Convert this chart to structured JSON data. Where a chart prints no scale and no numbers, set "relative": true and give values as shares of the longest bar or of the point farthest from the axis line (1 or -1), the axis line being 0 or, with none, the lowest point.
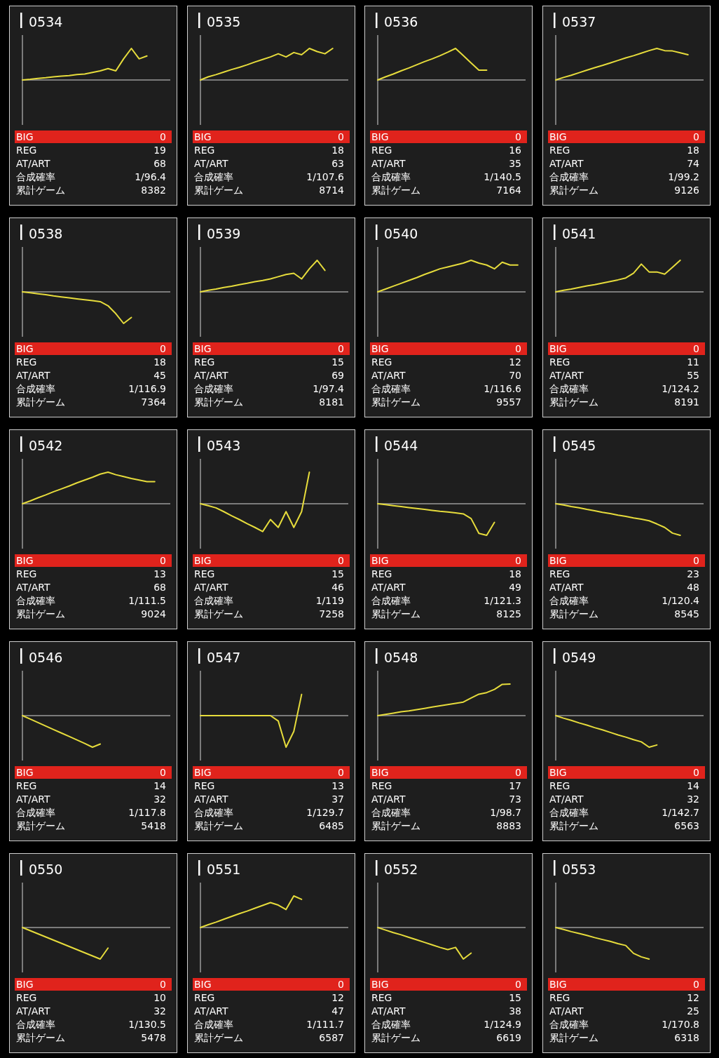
{
  "chart_data": [
    {
      "type": "line",
      "title": "0534",
      "relative": true,
      "color": "#e6dc3c",
      "categories": [
        null,
        null,
        null,
        null,
        null,
        null,
        null,
        null,
        null,
        null,
        null,
        null,
        null,
        null,
        null,
        null,
        null,
        null,
        null,
        null
      ],
      "values": [
        0,
        0.02,
        0.05,
        0.07,
        0.1,
        0.12,
        0.14,
        0.17,
        0.19,
        0.24,
        0.29,
        0.36,
        0.29,
        0.67,
        1,
        0.67,
        0.76,
        null,
        null,
        null
      ],
      "annotations": [
        "BIG",
        "0",
        "REG",
        "19",
        "AT/ART",
        "68",
        "合成確率",
        "1/96.4",
        "累計ゲーム",
        "8382"
      ]
    },
    {
      "type": "line",
      "title": "0535",
      "relative": true,
      "color": "#e6dc3c",
      "categories": [
        null,
        null,
        null,
        null,
        null,
        null,
        null,
        null,
        null,
        null,
        null,
        null,
        null,
        null,
        null,
        null,
        null,
        null,
        null,
        null
      ],
      "values": [
        0,
        0.1,
        0.17,
        0.25,
        0.33,
        0.4,
        0.48,
        0.57,
        0.65,
        0.73,
        0.83,
        0.73,
        0.87,
        0.8,
        1,
        0.9,
        0.83,
        1,
        null,
        null
      ],
      "annotations": [
        "BIG",
        "0",
        "REG",
        "18",
        "AT/ART",
        "63",
        "合成確率",
        "1/107.6",
        "累計ゲーム",
        "8714"
      ]
    },
    {
      "type": "line",
      "title": "0536",
      "relative": true,
      "color": "#e6dc3c",
      "categories": [
        null,
        null,
        null,
        null,
        null,
        null,
        null,
        null,
        null,
        null,
        null,
        null,
        null,
        null,
        null,
        null,
        null,
        null,
        null,
        null
      ],
      "values": [
        0,
        0.1,
        0.19,
        0.29,
        0.38,
        0.48,
        0.58,
        0.67,
        0.77,
        0.88,
        1,
        0.77,
        0.54,
        0.31,
        0.31,
        null,
        null,
        null,
        null,
        null
      ],
      "annotations": [
        "BIG",
        "0",
        "REG",
        "16",
        "AT/ART",
        "35",
        "合成確率",
        "1/140.5",
        "累計ゲーム",
        "7164"
      ]
    },
    {
      "type": "line",
      "title": "0537",
      "relative": true,
      "color": "#e6dc3c",
      "categories": [
        null,
        null,
        null,
        null,
        null,
        null,
        null,
        null,
        null,
        null,
        null,
        null,
        null,
        null,
        null,
        null,
        null,
        null,
        null,
        null
      ],
      "values": [
        0,
        0.08,
        0.15,
        0.23,
        0.31,
        0.39,
        0.46,
        0.54,
        0.62,
        0.7,
        0.77,
        0.85,
        0.93,
        1,
        0.93,
        0.92,
        0.86,
        0.8,
        null,
        null
      ],
      "annotations": [
        "BIG",
        "0",
        "REG",
        "18",
        "AT/ART",
        "74",
        "合成確率",
        "1/99.2",
        "累計ゲーム",
        "9126"
      ]
    },
    {
      "type": "line",
      "title": "0538",
      "relative": true,
      "color": "#e6dc3c",
      "categories": [
        null,
        null,
        null,
        null,
        null,
        null,
        null,
        null,
        null,
        null,
        null,
        null,
        null,
        null,
        null,
        null,
        null,
        null,
        null,
        null
      ],
      "values": [
        0,
        -0.03,
        -0.06,
        -0.09,
        -0.13,
        -0.16,
        -0.19,
        -0.22,
        -0.25,
        -0.28,
        -0.31,
        -0.44,
        -0.69,
        -1,
        -0.81,
        null,
        null,
        null,
        null,
        null
      ],
      "annotations": [
        "BIG",
        "0",
        "REG",
        "18",
        "AT/ART",
        "45",
        "合成確率",
        "1/116.9",
        "累計ゲーム",
        "7364"
      ]
    },
    {
      "type": "line",
      "title": "0539",
      "relative": true,
      "color": "#e6dc3c",
      "categories": [
        null,
        null,
        null,
        null,
        null,
        null,
        null,
        null,
        null,
        null,
        null,
        null,
        null,
        null,
        null,
        null,
        null,
        null,
        null,
        null
      ],
      "values": [
        0,
        0.05,
        0.09,
        0.14,
        0.18,
        0.23,
        0.27,
        0.32,
        0.36,
        0.41,
        0.48,
        0.55,
        0.59,
        0.41,
        0.73,
        1,
        0.68,
        null,
        null,
        null
      ],
      "annotations": [
        "BIG",
        "0",
        "REG",
        "15",
        "AT/ART",
        "69",
        "合成確率",
        "1/97.4",
        "累計ゲーム",
        "8181"
      ]
    },
    {
      "type": "line",
      "title": "0540",
      "relative": true,
      "color": "#e6dc3c",
      "categories": [
        null,
        null,
        null,
        null,
        null,
        null,
        null,
        null,
        null,
        null,
        null,
        null,
        null,
        null,
        null,
        null,
        null,
        null,
        null,
        null
      ],
      "values": [
        0,
        0.09,
        0.18,
        0.27,
        0.36,
        0.45,
        0.55,
        0.64,
        0.73,
        0.79,
        0.85,
        0.91,
        1,
        0.91,
        0.85,
        0.73,
        0.94,
        0.85,
        0.85,
        null
      ],
      "annotations": [
        "BIG",
        "0",
        "REG",
        "12",
        "AT/ART",
        "70",
        "合成確率",
        "1/116.6",
        "累計ゲーム",
        "9557"
      ]
    },
    {
      "type": "line",
      "title": "0541",
      "relative": true,
      "color": "#e6dc3c",
      "categories": [
        null,
        null,
        null,
        null,
        null,
        null,
        null,
        null,
        null,
        null,
        null,
        null,
        null,
        null,
        null,
        null,
        null,
        null,
        null,
        null
      ],
      "values": [
        0,
        0.05,
        0.09,
        0.14,
        0.19,
        0.23,
        0.28,
        0.33,
        0.38,
        0.44,
        0.59,
        0.88,
        0.63,
        0.63,
        0.56,
        0.78,
        1,
        null,
        null,
        null
      ],
      "annotations": [
        "BIG",
        "0",
        "REG",
        "11",
        "AT/ART",
        "55",
        "合成確率",
        "1/124.2",
        "累計ゲーム",
        "8191"
      ]
    },
    {
      "type": "line",
      "title": "0542",
      "relative": true,
      "color": "#e6dc3c",
      "categories": [
        null,
        null,
        null,
        null,
        null,
        null,
        null,
        null,
        null,
        null,
        null,
        null,
        null,
        null,
        null,
        null,
        null,
        null,
        null,
        null
      ],
      "values": [
        0,
        0.09,
        0.19,
        0.28,
        0.38,
        0.47,
        0.56,
        0.66,
        0.75,
        0.84,
        0.94,
        1,
        0.92,
        0.86,
        0.8,
        0.75,
        0.7,
        0.7,
        null,
        null
      ],
      "annotations": [
        "BIG",
        "0",
        "REG",
        "13",
        "AT/ART",
        "68",
        "合成確率",
        "1/111.5",
        "累計ゲーム",
        "9024"
      ]
    },
    {
      "type": "line",
      "title": "0543",
      "relative": true,
      "color": "#e6dc3c",
      "categories": [
        null,
        null,
        null,
        null,
        null,
        null,
        null,
        null,
        null,
        null,
        null,
        null,
        null,
        null,
        null,
        null,
        null,
        null,
        null,
        null
      ],
      "values": [
        0,
        -0.06,
        -0.13,
        -0.25,
        -0.38,
        -0.5,
        -0.63,
        -0.75,
        -0.88,
        -0.5,
        -0.75,
        -0.25,
        -0.75,
        -0.25,
        1,
        null,
        null,
        null,
        null,
        null
      ],
      "annotations": [
        "BIG",
        "0",
        "REG",
        "15",
        "AT/ART",
        "46",
        "合成確率",
        "1/119",
        "累計ゲーム",
        "7258"
      ]
    },
    {
      "type": "line",
      "title": "0544",
      "relative": true,
      "color": "#e6dc3c",
      "categories": [
        null,
        null,
        null,
        null,
        null,
        null,
        null,
        null,
        null,
        null,
        null,
        null,
        null,
        null,
        null,
        null,
        null,
        null,
        null,
        null
      ],
      "values": [
        0,
        -0.03,
        -0.06,
        -0.09,
        -0.12,
        -0.15,
        -0.18,
        -0.21,
        -0.24,
        -0.26,
        -0.29,
        -0.32,
        -0.47,
        -0.94,
        -1,
        -0.59,
        null,
        null,
        null,
        null
      ],
      "annotations": [
        "BIG",
        "0",
        "REG",
        "18",
        "AT/ART",
        "49",
        "合成確率",
        "1/121.3",
        "累計ゲーム",
        "8125"
      ]
    },
    {
      "type": "line",
      "title": "0545",
      "relative": true,
      "color": "#e6dc3c",
      "categories": [
        null,
        null,
        null,
        null,
        null,
        null,
        null,
        null,
        null,
        null,
        null,
        null,
        null,
        null,
        null,
        null,
        null,
        null,
        null,
        null
      ],
      "values": [
        0,
        -0.04,
        -0.09,
        -0.13,
        -0.18,
        -0.22,
        -0.27,
        -0.31,
        -0.36,
        -0.4,
        -0.45,
        -0.49,
        -0.54,
        -0.64,
        -0.75,
        -0.93,
        -1,
        null,
        null,
        null
      ],
      "annotations": [
        "BIG",
        "0",
        "REG",
        "23",
        "AT/ART",
        "48",
        "合成確率",
        "1/120.4",
        "累計ゲーム",
        "8545"
      ]
    },
    {
      "type": "line",
      "title": "0546",
      "relative": true,
      "color": "#e6dc3c",
      "categories": [
        null,
        null,
        null,
        null,
        null,
        null,
        null,
        null,
        null,
        null,
        null,
        null,
        null,
        null,
        null,
        null,
        null,
        null,
        null,
        null
      ],
      "values": [
        0,
        -0.11,
        -0.22,
        -0.33,
        -0.44,
        -0.55,
        -0.66,
        -0.77,
        -0.88,
        -1,
        -0.9,
        null,
        null,
        null,
        null,
        null,
        null,
        null,
        null,
        null
      ],
      "annotations": [
        "BIG",
        "0",
        "REG",
        "14",
        "AT/ART",
        "32",
        "合成確率",
        "1/117.8",
        "累計ゲーム",
        "5418"
      ]
    },
    {
      "type": "line",
      "title": "0547",
      "relative": true,
      "color": "#e6dc3c",
      "categories": [
        null,
        null,
        null,
        null,
        null,
        null,
        null,
        null,
        null,
        null,
        null,
        null,
        null,
        null,
        null,
        null,
        null,
        null,
        null,
        null
      ],
      "values": [
        0,
        0,
        0,
        0,
        0,
        0,
        0,
        0,
        0,
        0,
        -0.17,
        -1,
        -0.5,
        0.67,
        null,
        null,
        null,
        null,
        null,
        null
      ],
      "annotations": [
        "BIG",
        "0",
        "REG",
        "13",
        "AT/ART",
        "37",
        "合成確率",
        "1/129.7",
        "累計ゲーム",
        "6485"
      ]
    },
    {
      "type": "line",
      "title": "0548",
      "relative": true,
      "color": "#e6dc3c",
      "categories": [
        null,
        null,
        null,
        null,
        null,
        null,
        null,
        null,
        null,
        null,
        null,
        null,
        null,
        null,
        null,
        null,
        null,
        null,
        null,
        null
      ],
      "values": [
        0,
        0.04,
        0.08,
        0.12,
        0.15,
        0.19,
        0.23,
        0.27,
        0.31,
        0.35,
        0.39,
        0.43,
        0.56,
        0.68,
        0.73,
        0.83,
        0.99,
        1,
        null,
        null
      ],
      "annotations": [
        "BIG",
        "0",
        "REG",
        "17",
        "AT/ART",
        "73",
        "合成確率",
        "1/98.7",
        "累計ゲーム",
        "8883"
      ]
    },
    {
      "type": "line",
      "title": "0549",
      "relative": true,
      "color": "#e6dc3c",
      "categories": [
        null,
        null,
        null,
        null,
        null,
        null,
        null,
        null,
        null,
        null,
        null,
        null,
        null,
        null,
        null,
        null,
        null,
        null,
        null,
        null
      ],
      "values": [
        0,
        -0.08,
        -0.15,
        -0.23,
        -0.3,
        -0.38,
        -0.45,
        -0.53,
        -0.61,
        -0.68,
        -0.76,
        -0.83,
        -1,
        -0.93,
        null,
        null,
        null,
        null,
        null,
        null
      ],
      "annotations": [
        "BIG",
        "0",
        "REG",
        "14",
        "AT/ART",
        "32",
        "合成確率",
        "1/142.7",
        "累計ゲーム",
        "6563"
      ]
    },
    {
      "type": "line",
      "title": "0550",
      "relative": true,
      "color": "#e6dc3c",
      "categories": [
        null,
        null,
        null,
        null,
        null,
        null,
        null,
        null,
        null,
        null,
        null,
        null,
        null,
        null,
        null,
        null,
        null,
        null,
        null,
        null
      ],
      "values": [
        0,
        -0.1,
        -0.2,
        -0.3,
        -0.4,
        -0.5,
        -0.6,
        -0.7,
        -0.8,
        -0.9,
        -1,
        -0.65,
        null,
        null,
        null,
        null,
        null,
        null,
        null,
        null
      ],
      "annotations": [
        "BIG",
        "0",
        "REG",
        "10",
        "AT/ART",
        "32",
        "合成確率",
        "1/130.5",
        "累計ゲーム",
        "5478"
      ]
    },
    {
      "type": "line",
      "title": "0551",
      "relative": true,
      "color": "#e6dc3c",
      "categories": [
        null,
        null,
        null,
        null,
        null,
        null,
        null,
        null,
        null,
        null,
        null,
        null,
        null,
        null,
        null,
        null,
        null,
        null,
        null,
        null
      ],
      "values": [
        0,
        0.09,
        0.17,
        0.26,
        0.35,
        0.44,
        0.52,
        0.61,
        0.7,
        0.79,
        0.71,
        0.57,
        1,
        0.89,
        null,
        null,
        null,
        null,
        null,
        null
      ],
      "annotations": [
        "BIG",
        "0",
        "REG",
        "12",
        "AT/ART",
        "47",
        "合成確率",
        "1/111.7",
        "累計ゲーム",
        "6587"
      ]
    },
    {
      "type": "line",
      "title": "0552",
      "relative": true,
      "color": "#e6dc3c",
      "categories": [
        null,
        null,
        null,
        null,
        null,
        null,
        null,
        null,
        null,
        null,
        null,
        null,
        null,
        null,
        null,
        null,
        null,
        null,
        null,
        null
      ],
      "values": [
        0,
        -0.08,
        -0.16,
        -0.23,
        -0.31,
        -0.39,
        -0.47,
        -0.55,
        -0.63,
        -0.7,
        -0.63,
        -1,
        -0.81,
        null,
        null,
        null,
        null,
        null,
        null,
        null
      ],
      "annotations": [
        "BIG",
        "0",
        "REG",
        "15",
        "AT/ART",
        "38",
        "合成確率",
        "1/124.9",
        "累計ゲーム",
        "6619"
      ]
    },
    {
      "type": "line",
      "title": "0553",
      "relative": true,
      "color": "#e6dc3c",
      "categories": [
        null,
        null,
        null,
        null,
        null,
        null,
        null,
        null,
        null,
        null,
        null,
        null,
        null,
        null,
        null,
        null,
        null,
        null,
        null,
        null
      ],
      "values": [
        0,
        -0.06,
        -0.13,
        -0.19,
        -0.25,
        -0.32,
        -0.38,
        -0.44,
        -0.51,
        -0.57,
        -0.82,
        -0.93,
        -1,
        null,
        null,
        null,
        null,
        null,
        null,
        null
      ],
      "annotations": [
        "BIG",
        "0",
        "REG",
        "12",
        "AT/ART",
        "25",
        "合成確率",
        "1/170.8",
        "累計ゲーム",
        "6318"
      ]
    }
  ]
}
